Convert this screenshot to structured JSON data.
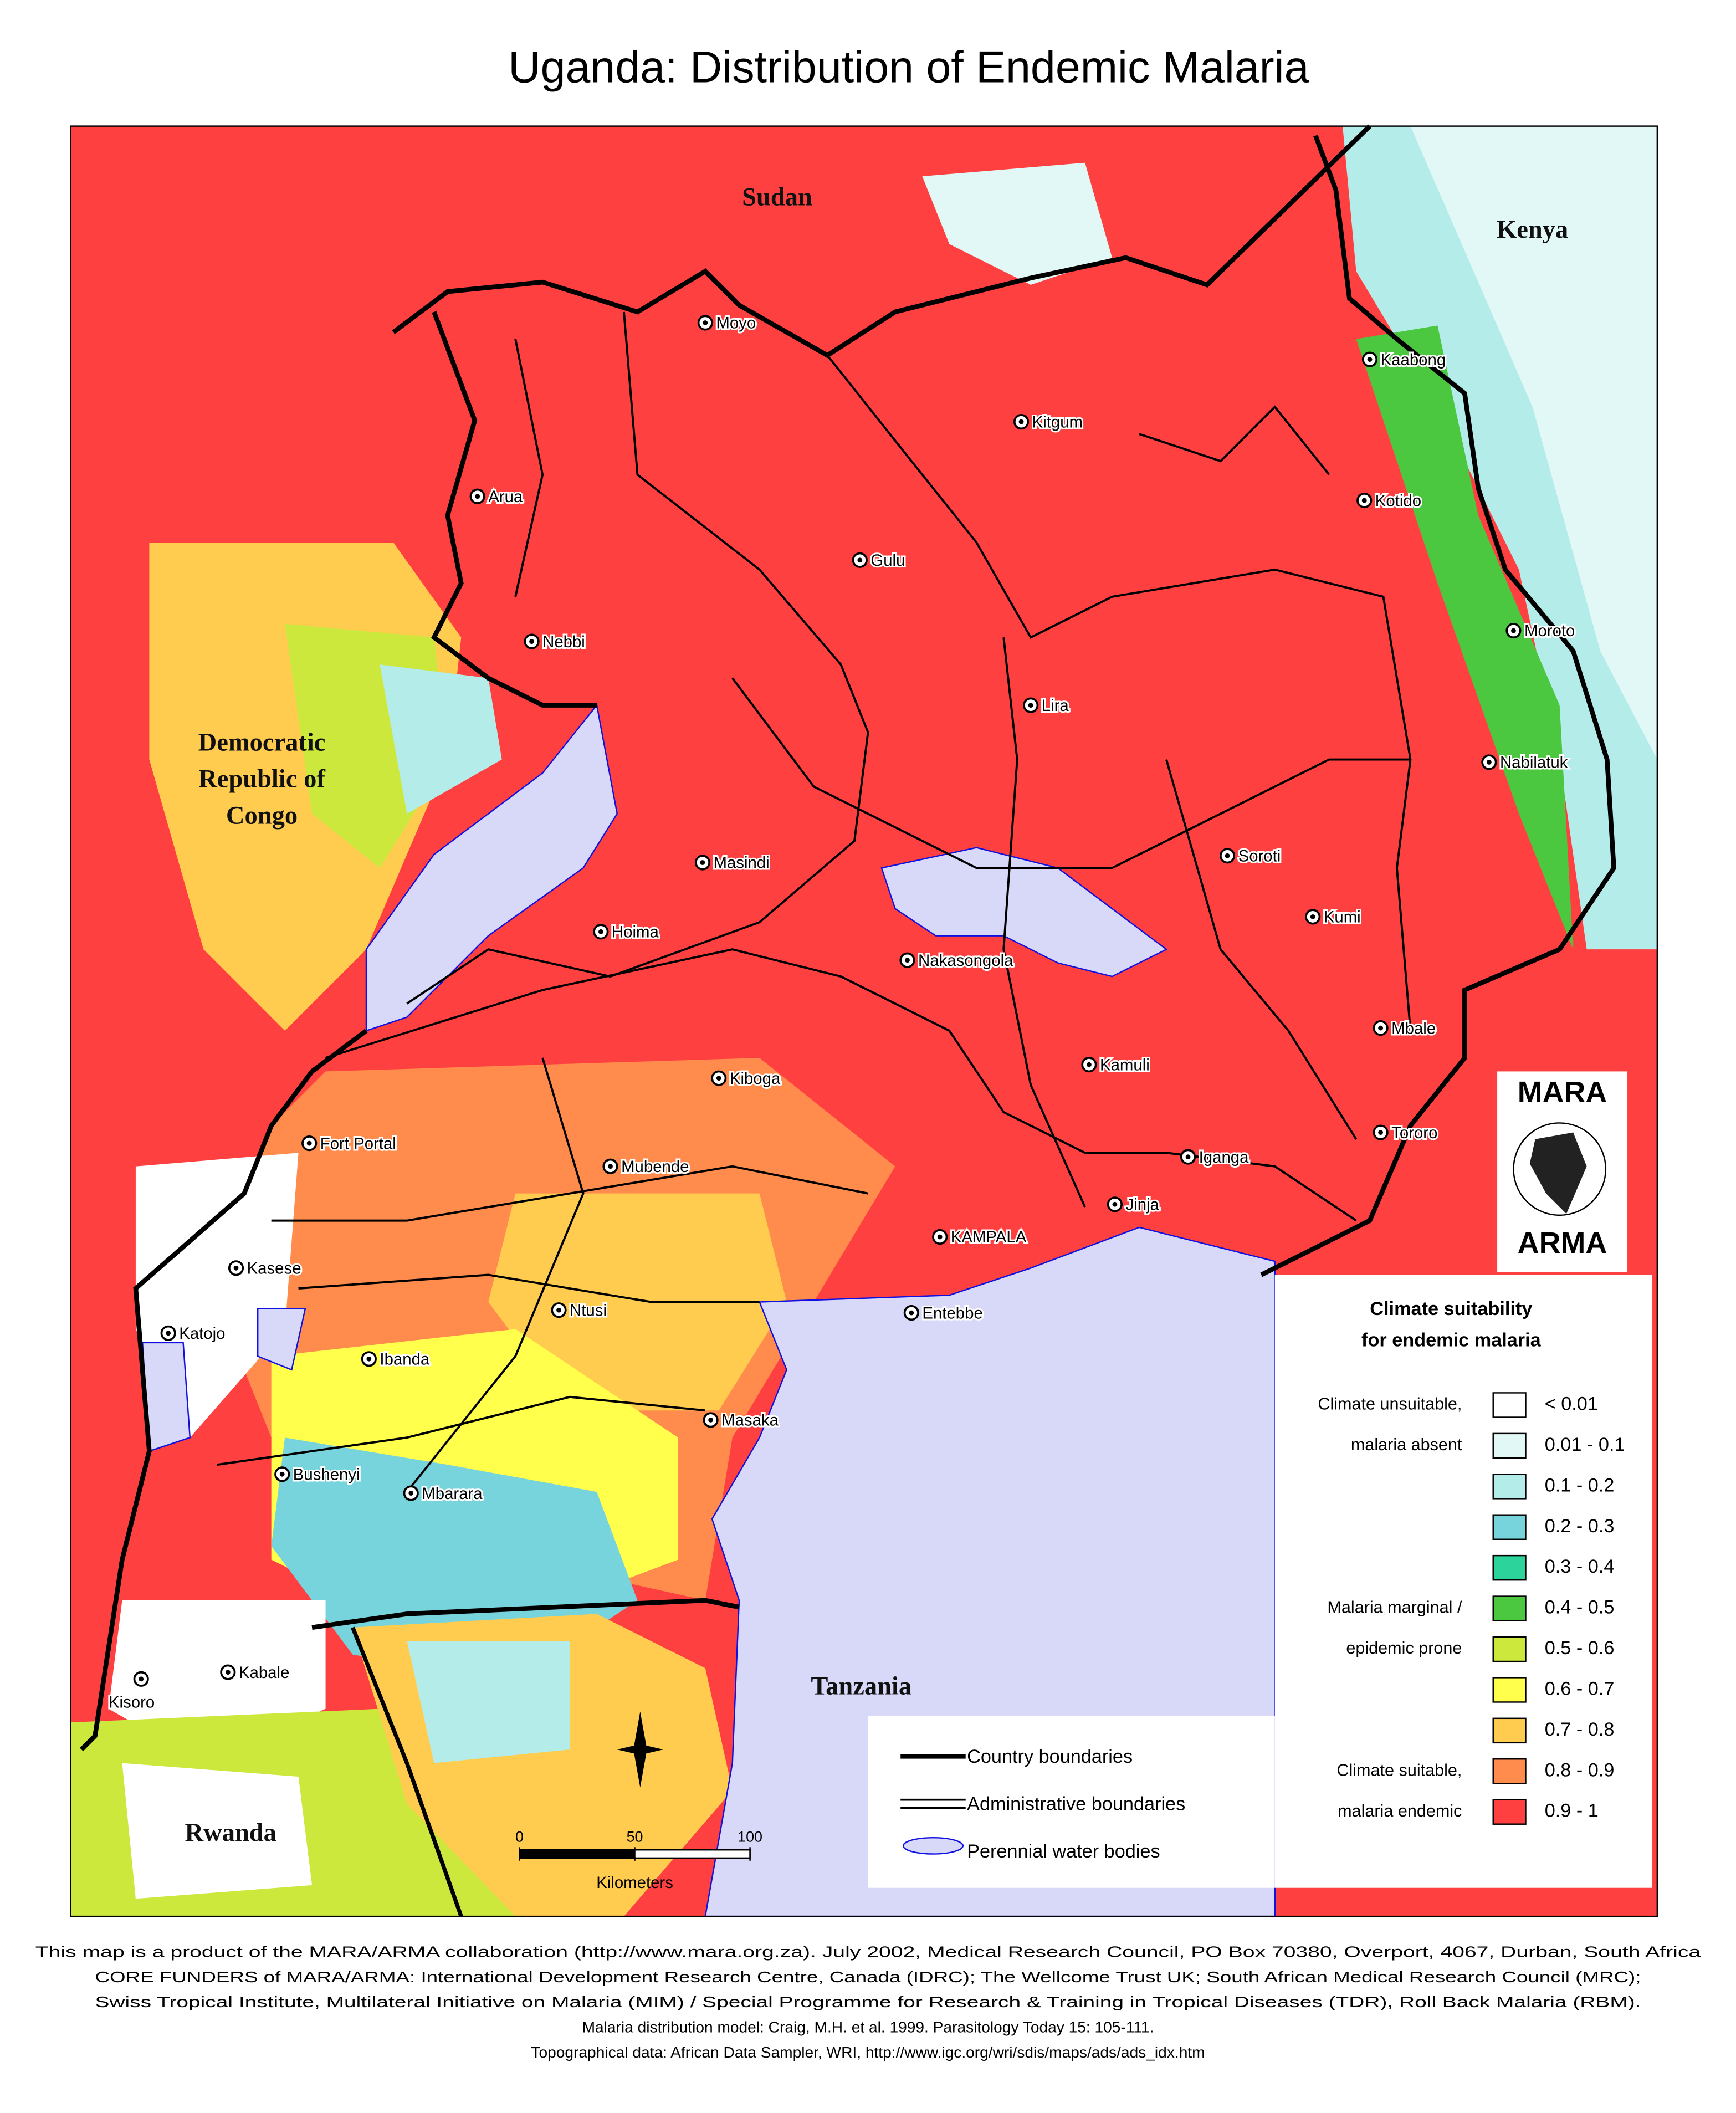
{
  "title": "Uganda: Distribution of Endemic Malaria",
  "countries": {
    "sudan": "Sudan",
    "kenya": "Kenya",
    "drc": [
      "Democratic",
      "Republic of",
      "Congo"
    ],
    "tanzania": "Tanzania",
    "rwanda": "Rwanda"
  },
  "cities": [
    "Moyo",
    "Kitgum",
    "Kaabong",
    "Arua",
    "Kotido",
    "Gulu",
    "Moroto",
    "Nebbi",
    "Lira",
    "Nabilatuk",
    "Masindi",
    "Soroti",
    "Kumi",
    "Hoima",
    "Nakasongola",
    "Mbale",
    "Kiboga",
    "Kamuli",
    "Fort Portal",
    "Tororo",
    "Iganga",
    "Mubende",
    "Jinja",
    "KAMPALA",
    "Kasese",
    "Ntusi",
    "Entebbe",
    "Katojo",
    "Ibanda",
    "Masaka",
    "Bushenyi",
    "Mbarara",
    "Kabale",
    "Kisoro"
  ],
  "logo": [
    "MARA",
    "ARMA"
  ],
  "legend": {
    "title": [
      "Climate suitability",
      "for endemic malaria"
    ],
    "items": [
      {
        "label": "< 0.01",
        "color": "#ffffff"
      },
      {
        "label": "0.01 - 0.1",
        "color": "#e2f8f6"
      },
      {
        "label": "0.1 - 0.2",
        "color": "#b4ecea"
      },
      {
        "label": "0.2 - 0.3",
        "color": "#78d4dc"
      },
      {
        "label": "0.3 - 0.4",
        "color": "#2cd49c"
      },
      {
        "label": "0.4 - 0.5",
        "color": "#4cc840"
      },
      {
        "label": "0.5 - 0.6",
        "color": "#cce83c"
      },
      {
        "label": "0.6 - 0.7",
        "color": "#ffff4c"
      },
      {
        "label": "0.7 - 0.8",
        "color": "#ffcc50"
      },
      {
        "label": "0.8 - 0.9",
        "color": "#ff8c4c"
      },
      {
        "label": "0.9 - 1",
        "color": "#ff4040"
      }
    ],
    "notes": [
      "Climate unsuitable,",
      "malaria absent",
      "Malaria marginal /",
      "epidemic prone",
      "Climate suitable,",
      "malaria endemic"
    ]
  },
  "boundaries": [
    "Country boundaries",
    "Administrative boundaries",
    "Perennial water bodies"
  ],
  "scale": {
    "ticks": [
      0,
      50,
      100
    ],
    "unit": "Kilometers"
  },
  "footer": [
    "This map is a product of the MARA/ARMA collaboration (http://www.mara.org.za).  July 2002, Medical Research Council, PO Box 70380, Overport, 4067, Durban, South Africa",
    "CORE FUNDERS of MARA/ARMA: International Development Research Centre, Canada (IDRC); The Wellcome Trust UK; South African Medical Research Council (MRC);",
    "Swiss Tropical Institute, Multilateral Initiative on Malaria (MIM) / Special Programme for Research & Training in Tropical Diseases (TDR), Roll Back Malaria (RBM).",
    "Malaria distribution model: Craig, M.H. et al. 1999.  Parasitology Today 15: 105-111.",
    "Topographical data: African Data Sampler, WRI, http://www.igc.org/wri/sdis/maps/ads/ads_idx.htm"
  ]
}
